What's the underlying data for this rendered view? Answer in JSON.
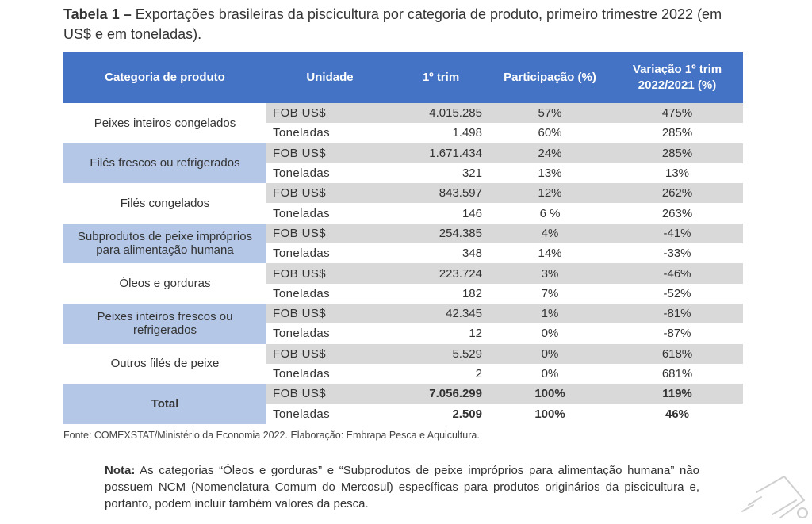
{
  "title": {
    "prefix": "Tabela 1 –",
    "text": " Exportações brasileiras da piscicultura por categoria de produto, primeiro trimestre 2022 (em US$ e em toneladas)."
  },
  "headers": [
    "Categoria de produto",
    "Unidade",
    "1º trim",
    "Participação (%)",
    "Variação 1º trim 2022/2021 (%)"
  ],
  "rows": [
    {
      "category": "Peixes inteiros congelados",
      "style": "white",
      "fob": {
        "unit": "FOB US$",
        "value": "4.015.285",
        "share": "57%",
        "change": "475%"
      },
      "ton": {
        "unit": "Toneladas",
        "value": "1.498",
        "share": "60%",
        "change": "285%"
      }
    },
    {
      "category": "Filés frescos ou refrigerados",
      "style": "blue",
      "fob": {
        "unit": "FOB US$",
        "value": "1.671.434",
        "share": "24%",
        "change": "285%"
      },
      "ton": {
        "unit": "Toneladas",
        "value": "321",
        "share": "13%",
        "change": "13%"
      }
    },
    {
      "category": "Filés congelados",
      "style": "white",
      "fob": {
        "unit": "FOB US$",
        "value": "843.597",
        "share": "12%",
        "change": "262%"
      },
      "ton": {
        "unit": "Toneladas",
        "value": "146",
        "share": "6 %",
        "change": "263%"
      }
    },
    {
      "category": "Subprodutos de peixe impróprios para alimentação humana",
      "style": "blue",
      "fob": {
        "unit": "FOB US$",
        "value": "254.385",
        "share": "4%",
        "change": "-41%"
      },
      "ton": {
        "unit": "Toneladas",
        "value": "348",
        "share": "14%",
        "change": "-33%"
      }
    },
    {
      "category": "Óleos e gorduras",
      "style": "white",
      "fob": {
        "unit": "FOB US$",
        "value": "223.724",
        "share": "3%",
        "change": "-46%"
      },
      "ton": {
        "unit": "Toneladas",
        "value": "182",
        "share": "7%",
        "change": "-52%"
      }
    },
    {
      "category": "Peixes inteiros frescos ou refrigerados",
      "style": "blue",
      "fob": {
        "unit": "FOB US$",
        "value": "42.345",
        "share": "1%",
        "change": "-81%"
      },
      "ton": {
        "unit": "Toneladas",
        "value": "12",
        "share": "0%",
        "change": "-87%"
      }
    },
    {
      "category": "Outros filés de peixe",
      "style": "white",
      "fob": {
        "unit": "FOB US$",
        "value": "5.529",
        "share": "0%",
        "change": "618%"
      },
      "ton": {
        "unit": "Toneladas",
        "value": "2",
        "share": "0%",
        "change": "681%"
      }
    },
    {
      "category": "Total",
      "style": "total",
      "fob": {
        "unit": "FOB US$",
        "value": "7.056.299",
        "share": "100%",
        "change": "119%"
      },
      "ton": {
        "unit": "Toneladas",
        "value": "2.509",
        "share": "100%",
        "change": "46%"
      }
    }
  ],
  "source": "Fonte: COMEXSTAT/Ministério da Economia 2022. Elaboração: Embrapa Pesca e Aquicultura.",
  "note": {
    "label": "Nota:",
    "text": " As categorias “Óleos e gorduras” e “Subprodutos de peixe impróprios para alimentação humana” não possuem NCM (Nomenclatura Comum do Mercosul) específicas para produtos originários da piscicultura e, portanto, podem incluir também valores da pesca."
  }
}
